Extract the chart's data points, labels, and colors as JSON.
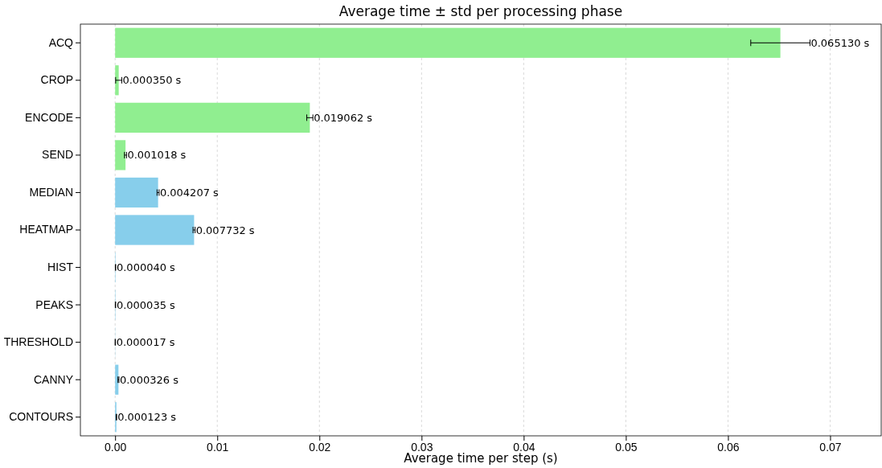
{
  "chart_data": {
    "type": "bar",
    "orientation": "horizontal",
    "title": "Average time ± std per processing phase",
    "xlabel": "Average time per step (s)",
    "categories": [
      "ACQ",
      "CROP",
      "ENCODE",
      "SEND",
      "MEDIAN",
      "HEATMAP",
      "HIST",
      "PEAKS",
      "THRESHOLD",
      "CANNY",
      "CONTOURS"
    ],
    "values": [
      0.06513,
      0.00035,
      0.019062,
      0.001018,
      0.004207,
      0.007732,
      4e-05,
      3.5e-05,
      1.7e-05,
      0.000326,
      0.000123
    ],
    "errors": [
      0.0029,
      0.0003,
      0.0003,
      0.0001,
      0.0001,
      0.0001,
      2e-05,
      2e-05,
      2e-05,
      5e-05,
      3e-05
    ],
    "value_labels": [
      "0.065130 s",
      "0.000350 s",
      "0.019062 s",
      "0.001018 s",
      "0.004207 s",
      "0.007732 s",
      "0.000040 s",
      "0.000035 s",
      "0.000017 s",
      "0.000326 s",
      "0.000123 s"
    ],
    "colors": [
      "#90ee90",
      "#90ee90",
      "#90ee90",
      "#90ee90",
      "#87ceeb",
      "#87ceeb",
      "#87ceeb",
      "#87ceeb",
      "#87ceeb",
      "#87ceeb",
      "#87ceeb"
    ],
    "xlim": [
      -0.0034,
      0.075
    ],
    "xticks": [
      {
        "value": 0,
        "label": "0.00"
      },
      {
        "value": 0.01,
        "label": "0.01"
      },
      {
        "value": 0.02,
        "label": "0.02"
      },
      {
        "value": 0.03,
        "label": "0.03"
      },
      {
        "value": 0.04,
        "label": "0.04"
      },
      {
        "value": 0.05,
        "label": "0.05"
      },
      {
        "value": 0.06,
        "label": "0.06"
      },
      {
        "value": 0.07,
        "label": "0.07"
      }
    ],
    "grid": "x"
  }
}
